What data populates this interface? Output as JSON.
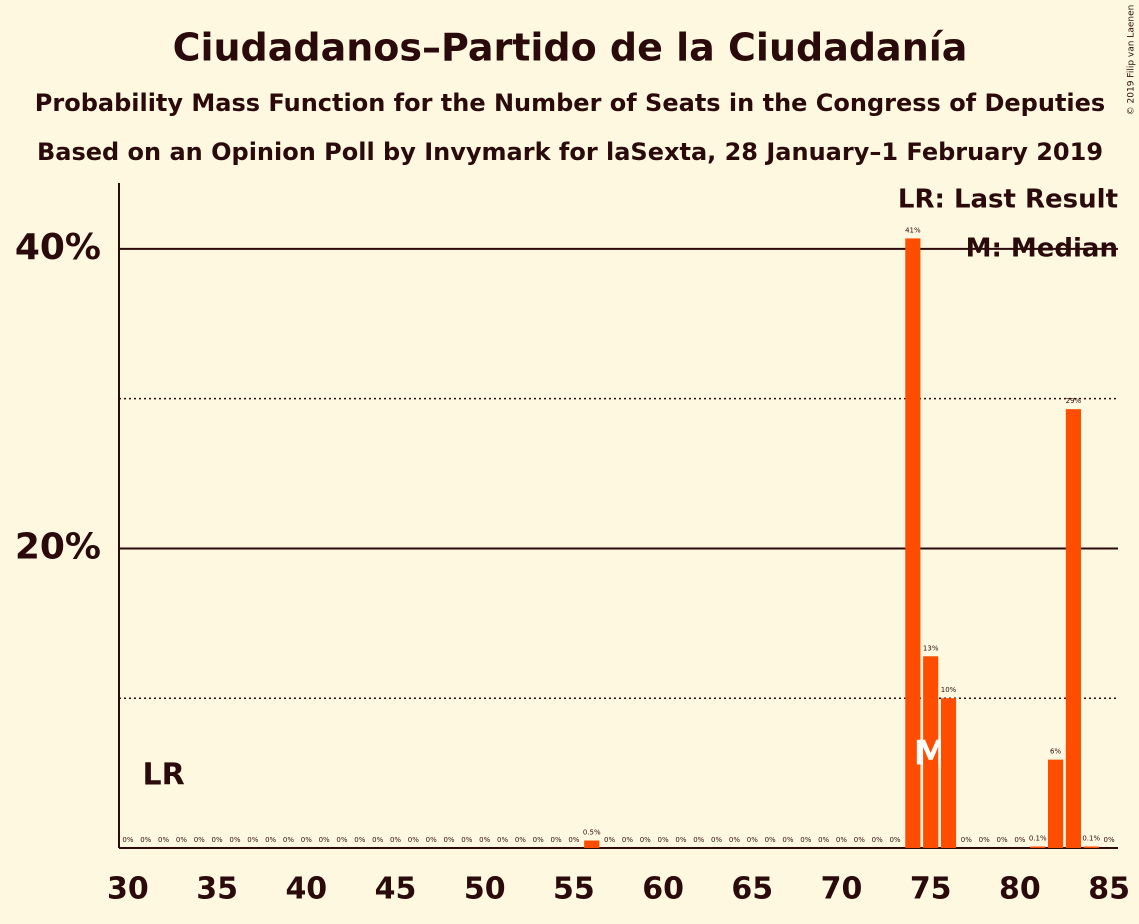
{
  "chart_data": {
    "type": "bar",
    "title": "Ciudadanos–Partido de la Ciudadanía",
    "subtitle": "Probability Mass Function for the Number of Seats in the Congress of Deputies",
    "subtitle2": "Based on an Opinion Poll by Invymark for laSexta, 28 January–1 February 2019",
    "copyright": "© 2019 Filip van Laenen",
    "legend": [
      "LR: Last Result",
      "M: Median"
    ],
    "color": "#ff4d00",
    "x": [
      30,
      31,
      32,
      33,
      34,
      35,
      36,
      37,
      38,
      39,
      40,
      41,
      42,
      43,
      44,
      45,
      46,
      47,
      48,
      49,
      50,
      51,
      52,
      53,
      54,
      55,
      56,
      57,
      58,
      59,
      60,
      61,
      62,
      63,
      64,
      65,
      66,
      67,
      68,
      69,
      70,
      71,
      72,
      73,
      74,
      75,
      76,
      77,
      78,
      79,
      80,
      81,
      82,
      83,
      84,
      85
    ],
    "values": [
      0,
      0,
      0,
      0,
      0,
      0,
      0,
      0,
      0,
      0,
      0,
      0,
      0,
      0,
      0,
      0,
      0,
      0,
      0,
      0,
      0,
      0,
      0,
      0,
      0,
      0,
      0.5,
      0,
      0,
      0,
      0,
      0,
      0,
      0,
      0,
      0,
      0,
      0,
      0,
      0,
      0,
      0,
      0,
      0,
      40.7,
      12.8,
      10,
      0,
      0,
      0,
      0,
      0.1,
      5.9,
      29.3,
      0.1,
      0
    ],
    "value_labels": [
      "0%",
      "0%",
      "0%",
      "0%",
      "0%",
      "0%",
      "0%",
      "0%",
      "0%",
      "0%",
      "0%",
      "0%",
      "0%",
      "0%",
      "0%",
      "0%",
      "0%",
      "0%",
      "0%",
      "0%",
      "0%",
      "0%",
      "0%",
      "0%",
      "0%",
      "0%",
      "0.5%",
      "0%",
      "0%",
      "0%",
      "0%",
      "0%",
      "0%",
      "0%",
      "0%",
      "0%",
      "0%",
      "0%",
      "0%",
      "0%",
      "0%",
      "0%",
      "0%",
      "0%",
      "41%",
      "13%",
      "10%",
      "0%",
      "0%",
      "0%",
      "0%",
      "0.1%",
      "6%",
      "29%",
      "0.1%",
      "0%"
    ],
    "last_result": 32,
    "last_result_label": "LR",
    "median": 75,
    "median_label": "M",
    "xlim": [
      29.5,
      85.5
    ],
    "xticks": [
      30,
      35,
      40,
      45,
      50,
      55,
      60,
      65,
      70,
      75,
      80,
      85
    ],
    "ylim": [
      0,
      44.4
    ],
    "yticks": [
      {
        "value": 20,
        "label": "20%"
      },
      {
        "value": 40,
        "label": "40%"
      }
    ],
    "minor_yticks": [
      10,
      30
    ]
  }
}
